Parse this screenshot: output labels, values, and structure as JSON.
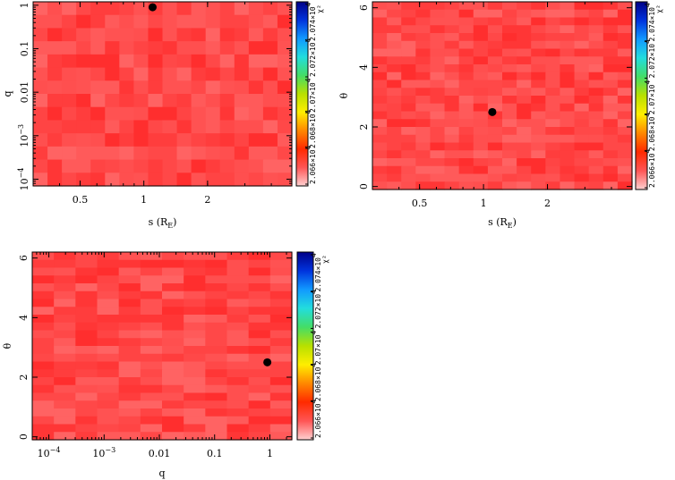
{
  "colormap_stops": [
    "#ffd0d0",
    "#ff5555",
    "#ff2a00",
    "#ff8800",
    "#ffee00",
    "#b8e000",
    "#44dd66",
    "#22dddd",
    "#1199ff",
    "#0033dd",
    "#000088"
  ],
  "cell_colors": [
    "#ff3636",
    "#ff4444",
    "#ff4f4f",
    "#ff5a5a",
    "#ff2e2e",
    "#ff6363",
    "#ff3d3d",
    "#ff5252",
    "#ff4848"
  ],
  "chart_data": [
    {
      "type": "heatmap",
      "xlabel": "s (R_E)",
      "ylabel": "q",
      "xscale": "log",
      "yscale": "log",
      "xlim": [
        0.3,
        5.0
      ],
      "ylim": [
        7e-05,
        1.2
      ],
      "xticks": [
        {
          "v": 0.5,
          "label": "0.5"
        },
        {
          "v": 1,
          "label": "1"
        },
        {
          "v": 2,
          "label": "2"
        }
      ],
      "yticks": [
        {
          "v": 0.0001,
          "label": "10",
          "sup": "−4"
        },
        {
          "v": 0.001,
          "label": "10",
          "sup": "−3"
        },
        {
          "v": 0.01,
          "label": "0.01"
        },
        {
          "v": 0.1,
          "label": "0.1"
        },
        {
          "v": 1,
          "label": "1"
        }
      ],
      "best_fit": {
        "x": 1.1,
        "y": 0.9
      },
      "colorbar_label": "χ²",
      "colorbar_ticks": [
        "2.066×10",
        "2.068×10",
        "2.07×10",
        "2.072×10",
        "2.074×10"
      ],
      "colorbar_tick_exp": "4"
    },
    {
      "type": "heatmap",
      "xlabel": "s (R_E)",
      "ylabel": "θ",
      "xscale": "log",
      "yscale": "linear",
      "xlim": [
        0.3,
        5.0
      ],
      "ylim": [
        -0.1,
        6.2
      ],
      "xticks": [
        {
          "v": 0.5,
          "label": "0.5"
        },
        {
          "v": 1,
          "label": "1"
        },
        {
          "v": 2,
          "label": "2"
        }
      ],
      "yticks": [
        {
          "v": 0,
          "label": "0"
        },
        {
          "v": 2,
          "label": "2"
        },
        {
          "v": 4,
          "label": "4"
        },
        {
          "v": 6,
          "label": "6"
        }
      ],
      "best_fit": {
        "x": 1.1,
        "y": 2.5
      },
      "colorbar_label": "χ²",
      "colorbar_ticks": [
        "2.066×10",
        "2.068×10",
        "2.07×10",
        "2.072×10",
        "2.074×10"
      ],
      "colorbar_tick_exp": "4"
    },
    {
      "type": "heatmap",
      "xlabel": "q",
      "ylabel": "θ",
      "xscale": "log",
      "yscale": "linear",
      "xlim": [
        5e-05,
        2.5
      ],
      "ylim": [
        -0.1,
        6.2
      ],
      "xticks": [
        {
          "v": 0.0001,
          "label": "10",
          "sup": "−4"
        },
        {
          "v": 0.001,
          "label": "10",
          "sup": "−3"
        },
        {
          "v": 0.01,
          "label": "0.01"
        },
        {
          "v": 0.1,
          "label": "0.1"
        },
        {
          "v": 1,
          "label": "1"
        }
      ],
      "yticks": [
        {
          "v": 0,
          "label": "0"
        },
        {
          "v": 2,
          "label": "2"
        },
        {
          "v": 4,
          "label": "4"
        },
        {
          "v": 6,
          "label": "6"
        }
      ],
      "best_fit": {
        "x": 0.9,
        "y": 2.5
      },
      "colorbar_label": "χ²",
      "colorbar_ticks": [
        "2.066×10",
        "2.068×10",
        "2.07×10",
        "2.072×10",
        "2.074×10"
      ],
      "colorbar_tick_exp": "4"
    }
  ]
}
